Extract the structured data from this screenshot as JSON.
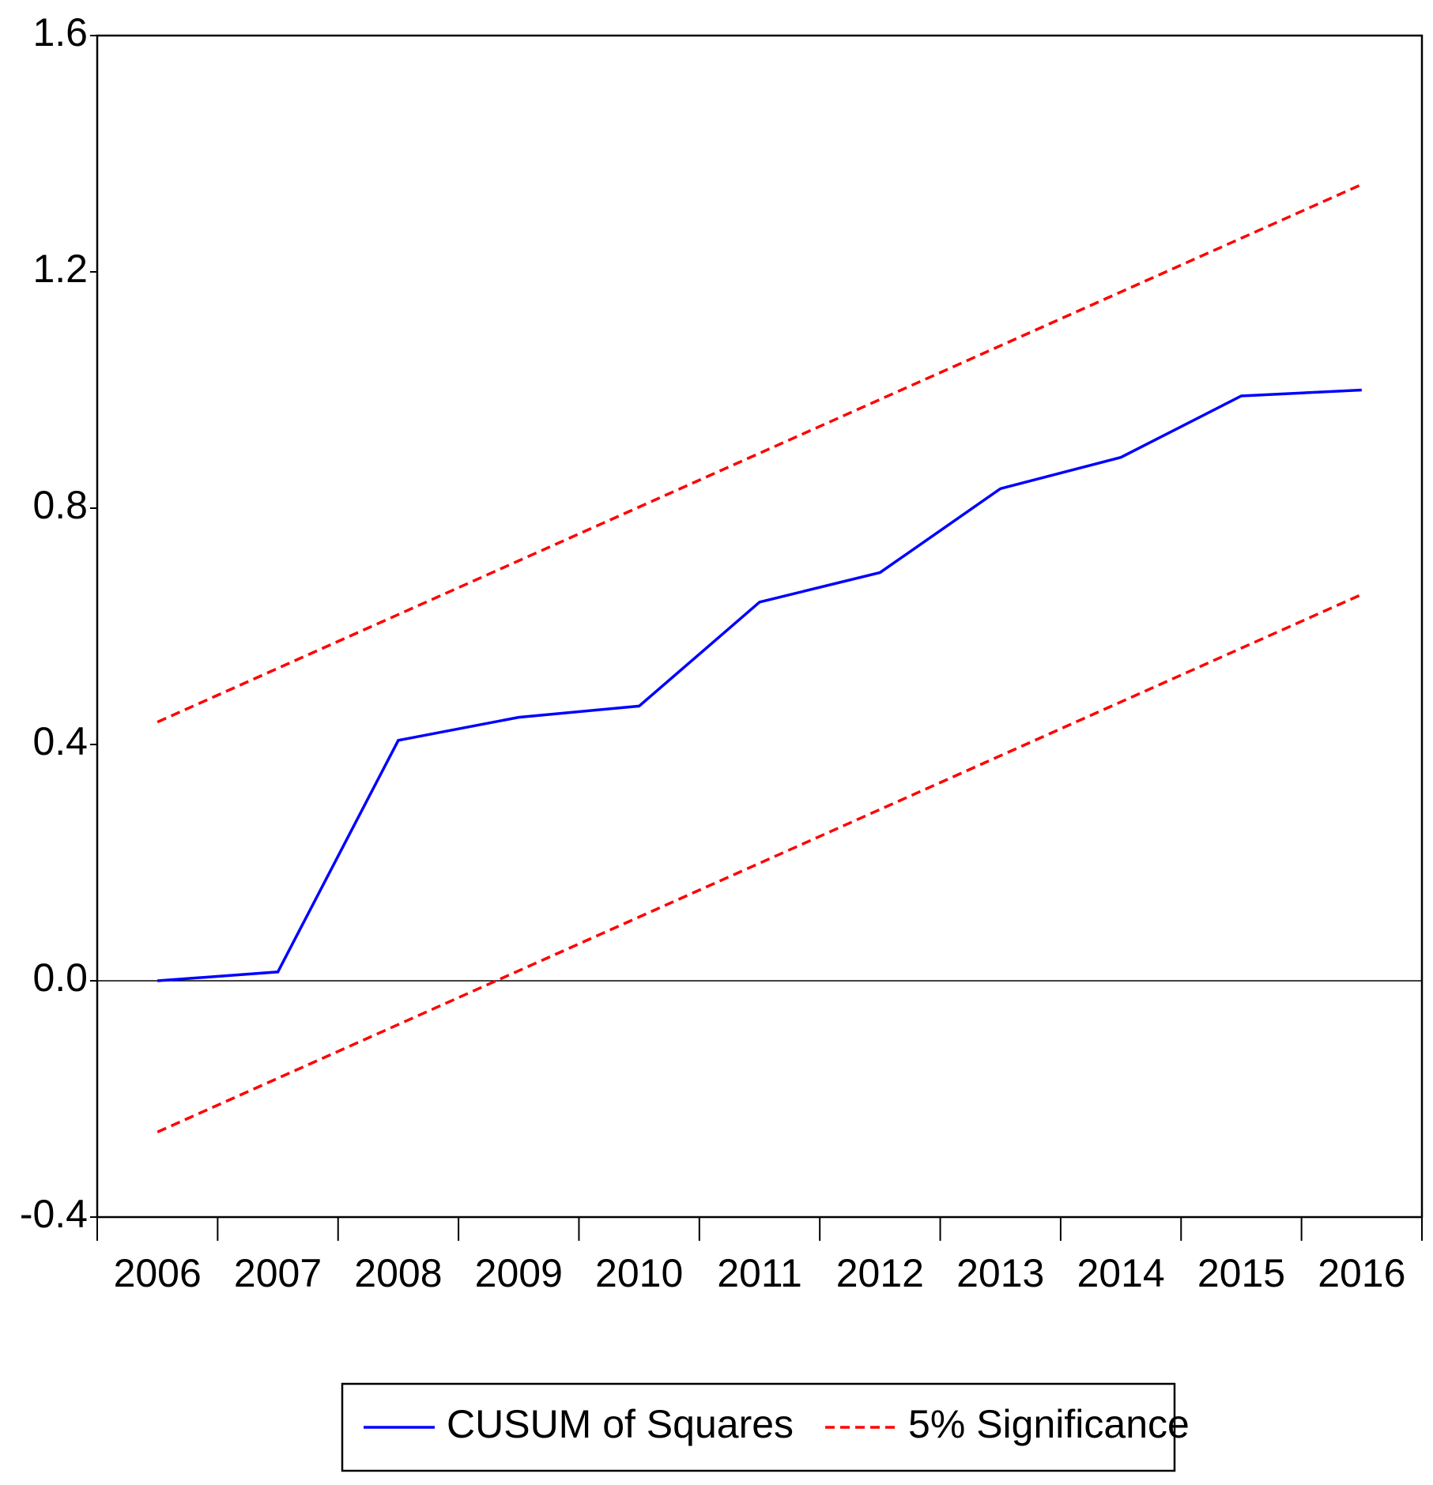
{
  "chart_data": {
    "type": "line",
    "categories": [
      "2006",
      "2007",
      "2008",
      "2009",
      "2010",
      "2011",
      "2012",
      "2013",
      "2014",
      "2015",
      "2016"
    ],
    "series": [
      {
        "name": "CUSUM of Squares",
        "color": "#0000ff",
        "values": [
          0.0,
          0.015,
          0.407,
          0.446,
          0.465,
          0.641,
          0.691,
          0.833,
          0.886,
          0.99,
          1.0
        ]
      },
      {
        "name": "5% Significance",
        "color": "#ff0000",
        "dashed": true,
        "upper": [
          0.438,
          0.529,
          0.62,
          0.711,
          0.802,
          0.893,
          0.984,
          1.075,
          1.166,
          1.257,
          1.348
        ],
        "lower": [
          -0.256,
          -0.165,
          -0.074,
          0.017,
          0.108,
          0.199,
          0.29,
          0.381,
          0.472,
          0.563,
          0.654
        ]
      }
    ],
    "ylim": [
      -0.4,
      1.6
    ],
    "yticks": [
      -0.4,
      {
        "value": 0,
        "label": "0.0"
      },
      0.4,
      0.8,
      1.2,
      1.6
    ],
    "zero_line": true,
    "legend": "bottom"
  }
}
